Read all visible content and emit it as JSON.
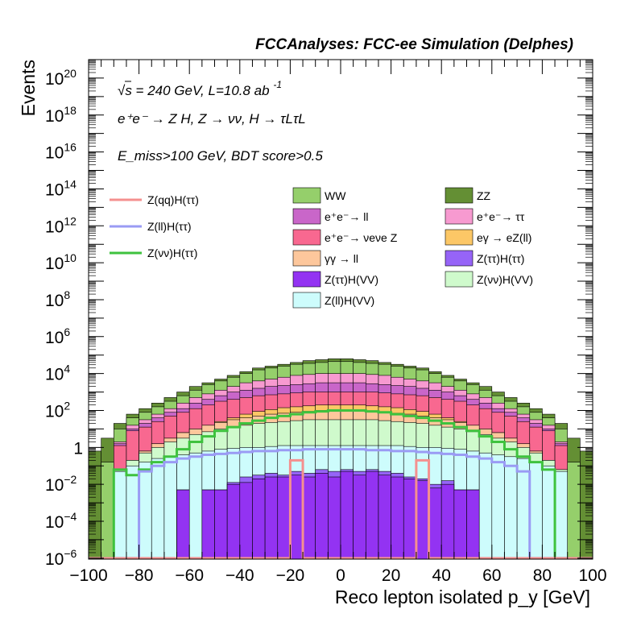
{
  "chart_data": {
    "type": "stacked-histogram",
    "title": "FCCAnalyses: FCC-ee Simulation (Delphes)",
    "xlabel": "Reco lepton isolated p_y [GeV]",
    "ylabel": "Events",
    "xlim": [
      -100,
      100
    ],
    "ylim_exp": [
      -6,
      21
    ],
    "log_y": true,
    "x_ticks": [
      -100,
      -80,
      -60,
      -40,
      -20,
      0,
      20,
      40,
      60,
      80,
      100
    ],
    "x_tick_labels": [
      "−100",
      "−80",
      "−60",
      "−40",
      "−20",
      "0",
      "20",
      "40",
      "60",
      "80",
      "100"
    ],
    "y_ticks": [
      {
        "exp": -6,
        "base": "10",
        "sup": "−6"
      },
      {
        "exp": -4,
        "base": "10",
        "sup": "−4"
      },
      {
        "exp": -2,
        "base": "10",
        "sup": "−2"
      },
      {
        "exp": 0,
        "base": "1",
        "sup": ""
      },
      {
        "exp": 2,
        "base": "10",
        "sup": "2"
      },
      {
        "exp": 4,
        "base": "10",
        "sup": "4"
      },
      {
        "exp": 6,
        "base": "10",
        "sup": "6"
      },
      {
        "exp": 8,
        "base": "10",
        "sup": "8"
      },
      {
        "exp": 10,
        "base": "10",
        "sup": "10"
      },
      {
        "exp": 12,
        "base": "10",
        "sup": "12"
      },
      {
        "exp": 14,
        "base": "10",
        "sup": "14"
      },
      {
        "exp": 16,
        "base": "10",
        "sup": "16"
      },
      {
        "exp": 18,
        "base": "10",
        "sup": "18"
      },
      {
        "exp": 20,
        "base": "10",
        "sup": "20"
      }
    ],
    "annotations": {
      "line1": "√s = 240 GeV, L=10.8 ab",
      "line1_sup": "-1",
      "line2": "e⁺e⁻ → Z H, Z → νν, H → τLτL",
      "line3": "E_miss>100 GeV, BDT score>0.5"
    },
    "legend_signal": [
      {
        "label": "Z(qq)H(ττ)",
        "color": "#f4908f"
      },
      {
        "label": "Z(ll)H(ττ)",
        "color": "#9a9bf4"
      },
      {
        "label": "Z(νν)H(ττ)",
        "color": "#3ec23e"
      }
    ],
    "legend_background": [
      {
        "label": "WW",
        "color": "#95cf6b"
      },
      {
        "label": "ZZ",
        "color": "#648f34"
      },
      {
        "label": "e⁺e⁻→ ll",
        "color": "#c966c9"
      },
      {
        "label": "e⁺e⁻→ ττ",
        "color": "#f79ad0"
      },
      {
        "label": "e⁺e⁻→ νeνe Z",
        "color": "#f86890"
      },
      {
        "label": "eγ → eZ(ll)",
        "color": "#fcc766"
      },
      {
        "label": "γγ → ll",
        "color": "#fdc79c"
      },
      {
        "label": "Z(ττ)H(ττ)",
        "color": "#9664f7"
      },
      {
        "label": "Z(ττ)H(VV)",
        "color": "#9333f2"
      },
      {
        "label": "Z(νν)H(VV)",
        "color": "#cffacc"
      },
      {
        "label": "Z(ll)H(VV)",
        "color": "#cdfcfc"
      }
    ],
    "bin_centers": [
      -97.5,
      -92.5,
      -87.5,
      -82.5,
      -77.5,
      -72.5,
      -67.5,
      -62.5,
      -57.5,
      -52.5,
      -47.5,
      -42.5,
      -37.5,
      -32.5,
      -27.5,
      -22.5,
      -17.5,
      -12.5,
      -7.5,
      -2.5,
      2.5,
      7.5,
      12.5,
      17.5,
      22.5,
      27.5,
      32.5,
      37.5,
      42.5,
      47.5,
      52.5,
      57.5,
      62.5,
      67.5,
      72.5,
      77.5,
      82.5,
      87.5,
      92.5,
      97.5
    ],
    "stack_log10": [
      {
        "name": "ZZ",
        "color": "#648f34",
        "log_top": [
          -0.2,
          0.5,
          1.3,
          1.8,
          2.1,
          2.4,
          2.7,
          3.0,
          3.3,
          3.5,
          3.7,
          3.9,
          4.1,
          4.3,
          4.4,
          4.5,
          4.6,
          4.7,
          4.75,
          4.8,
          4.8,
          4.75,
          4.7,
          4.6,
          4.5,
          4.4,
          4.3,
          4.1,
          3.9,
          3.7,
          3.5,
          3.3,
          3.0,
          2.7,
          2.4,
          2.1,
          1.8,
          1.3,
          0.5,
          -0.2
        ]
      },
      {
        "name": "WW",
        "color": "#95cf6b",
        "log_top": [
          -6,
          -0.8,
          1.0,
          1.6,
          1.9,
          2.2,
          2.5,
          2.8,
          3.1,
          3.4,
          3.6,
          3.8,
          4.0,
          4.2,
          4.3,
          4.4,
          4.5,
          4.55,
          4.6,
          4.65,
          4.65,
          4.6,
          4.55,
          4.5,
          4.4,
          4.3,
          4.2,
          4.0,
          3.8,
          3.6,
          3.4,
          3.1,
          2.8,
          2.5,
          2.2,
          1.9,
          1.6,
          1.0,
          -0.8,
          -6
        ]
      },
      {
        "name": "e⁺e⁻→ ττ",
        "color": "#f79ad0",
        "log_top": [
          -6,
          -6,
          0.3,
          1.2,
          1.5,
          1.8,
          2.1,
          2.4,
          2.7,
          2.9,
          3.1,
          3.3,
          3.5,
          3.6,
          3.7,
          3.8,
          3.9,
          3.95,
          4.0,
          4.0,
          4.0,
          4.0,
          3.95,
          3.9,
          3.8,
          3.7,
          3.6,
          3.5,
          3.3,
          3.1,
          2.9,
          2.7,
          2.4,
          2.1,
          1.8,
          1.5,
          1.2,
          0.3,
          -6,
          -6
        ]
      },
      {
        "name": "e⁺e⁻→ ll",
        "color": "#c966c9",
        "log_top": [
          -6,
          -6,
          0.2,
          1.0,
          1.3,
          1.6,
          1.9,
          2.1,
          2.4,
          2.6,
          2.8,
          3.0,
          3.1,
          3.2,
          3.3,
          3.35,
          3.4,
          3.45,
          3.5,
          3.5,
          3.5,
          3.5,
          3.45,
          3.4,
          3.35,
          3.3,
          3.2,
          3.1,
          3.0,
          2.8,
          2.6,
          2.4,
          2.1,
          1.9,
          1.6,
          1.3,
          1.0,
          0.2,
          -6,
          -6
        ]
      },
      {
        "name": "e⁺e⁻→ νeνe Z",
        "color": "#f86890",
        "log_top": [
          -6,
          -6,
          0.1,
          0.9,
          1.1,
          1.4,
          1.7,
          1.9,
          2.1,
          2.3,
          2.5,
          2.6,
          2.7,
          2.8,
          2.85,
          2.9,
          2.95,
          3.0,
          3.0,
          3.0,
          3.0,
          3.0,
          3.0,
          2.95,
          2.9,
          2.85,
          2.8,
          2.7,
          2.6,
          2.5,
          2.3,
          2.1,
          1.9,
          1.7,
          1.4,
          1.1,
          0.9,
          0.1,
          -6,
          -6
        ]
      },
      {
        "name": "eγ → eZ(ll)",
        "color": "#fcc766",
        "log_top": [
          -6,
          -6,
          -1.2,
          -0.7,
          -0.2,
          0.2,
          0.5,
          0.8,
          1.0,
          1.2,
          1.4,
          1.6,
          1.8,
          1.95,
          2.05,
          2.15,
          2.2,
          2.25,
          2.3,
          2.3,
          2.3,
          2.3,
          2.25,
          2.2,
          2.15,
          2.05,
          1.95,
          1.8,
          1.6,
          1.4,
          1.2,
          1.0,
          0.8,
          0.5,
          0.2,
          -0.2,
          -0.7,
          -1.2,
          -6,
          -6
        ]
      },
      {
        "name": "γγ → ll",
        "color": "#fdc79c",
        "log_top": [
          -6,
          -6,
          -1.2,
          -0.7,
          -0.2,
          0.2,
          0.5,
          0.8,
          1.0,
          1.2,
          1.35,
          1.5,
          1.6,
          1.7,
          1.8,
          1.85,
          1.9,
          1.95,
          2.0,
          2.0,
          2.0,
          2.0,
          1.95,
          1.9,
          1.85,
          1.8,
          1.7,
          1.6,
          1.5,
          1.35,
          1.2,
          1.0,
          0.8,
          0.5,
          0.2,
          -0.2,
          -0.7,
          -1.2,
          -6,
          -6
        ]
      },
      {
        "name": "Z(νν)H(VV)",
        "color": "#cffacc",
        "log_top": [
          -6,
          -6,
          -1.2,
          -0.7,
          -0.3,
          0.0,
          0.3,
          0.5,
          0.7,
          0.85,
          1.0,
          1.1,
          1.2,
          1.3,
          1.35,
          1.4,
          1.45,
          1.5,
          1.5,
          1.5,
          1.5,
          1.5,
          1.5,
          1.45,
          1.4,
          1.35,
          1.3,
          1.2,
          1.1,
          1.0,
          0.85,
          0.7,
          0.5,
          0.3,
          0.0,
          -0.3,
          -0.7,
          -1.2,
          -6,
          -6
        ]
      },
      {
        "name": "Z(ll)H(VV)",
        "color": "#cdfcfc",
        "log_top": [
          -6,
          -6,
          -1.3,
          -1.0,
          -0.8,
          -0.6,
          -0.5,
          -0.4,
          -0.3,
          -0.2,
          -0.1,
          -0.05,
          0.0,
          0.0,
          0.05,
          0.1,
          0.1,
          0.1,
          0.1,
          0.1,
          0.1,
          0.1,
          0.1,
          0.1,
          0.1,
          0.05,
          0.0,
          0.0,
          -0.05,
          -0.1,
          -0.2,
          -0.3,
          -0.4,
          -0.5,
          -0.6,
          -0.8,
          -1.0,
          -1.3,
          -6,
          -6
        ]
      },
      {
        "name": "Z(ττ)H(ττ)",
        "color": "#9664f7",
        "log_top": [
          -6,
          -6,
          -6,
          -6,
          -6,
          -6,
          -6,
          -2.3,
          -6,
          -2.3,
          -2.3,
          -1.9,
          -1.6,
          -1.5,
          -1.4,
          -1.5,
          -1.3,
          -1.4,
          -1.2,
          -1.3,
          -1.2,
          -1.3,
          -1.2,
          -1.3,
          -1.4,
          -1.6,
          -1.7,
          -2.0,
          -1.8,
          -2.3,
          -2.3,
          -6,
          -6,
          -6,
          -6,
          -6,
          -6,
          -6,
          -6,
          -6
        ]
      },
      {
        "name": "Z(ττ)H(VV)",
        "color": "#9333f2",
        "log_top": [
          -6,
          -6,
          -6,
          -6,
          -6,
          -6,
          -6,
          -2.3,
          -6,
          -2.3,
          -2.3,
          -2.0,
          -1.9,
          -1.7,
          -1.6,
          -1.6,
          -1.5,
          -1.6,
          -1.4,
          -1.6,
          -1.3,
          -1.5,
          -1.3,
          -1.5,
          -1.6,
          -1.7,
          -1.8,
          -2.2,
          -2.0,
          -2.3,
          -2.3,
          -6,
          -6,
          -6,
          -6,
          -6,
          -6,
          -6,
          -6,
          -6
        ]
      }
    ],
    "signal_log10": [
      {
        "name": "Z(νν)H(ττ)",
        "color": "#3ec23e",
        "log_y": [
          -6,
          -6,
          -1.2,
          -1.5,
          -1.2,
          -0.8,
          -0.5,
          -0.1,
          0.3,
          0.6,
          0.9,
          1.1,
          1.3,
          1.45,
          1.6,
          1.7,
          1.8,
          1.9,
          1.95,
          2.0,
          2.0,
          2.0,
          1.95,
          1.9,
          1.8,
          1.7,
          1.6,
          1.45,
          1.3,
          1.1,
          0.9,
          0.6,
          0.3,
          -0.1,
          -0.5,
          -0.8,
          -1.2,
          -6,
          -6,
          -6
        ]
      },
      {
        "name": "Z(ll)H(ττ)",
        "color": "#9a9bf4",
        "log_y": [
          -6,
          -6,
          -6,
          -6,
          -1.3,
          -1.0,
          -0.8,
          -0.6,
          -0.5,
          -0.4,
          -0.35,
          -0.3,
          -0.25,
          -0.2,
          -0.2,
          -0.15,
          -0.15,
          -0.1,
          -0.1,
          -0.1,
          -0.1,
          -0.1,
          -0.15,
          -0.15,
          -0.2,
          -0.2,
          -0.25,
          -0.3,
          -0.35,
          -0.4,
          -0.5,
          -0.6,
          -0.8,
          -1.0,
          -1.3,
          -6,
          -6,
          -6,
          -6,
          -6
        ]
      },
      {
        "name": "Z(qq)H(ττ)",
        "color": "#f4908f",
        "log_y": [
          -6,
          -6,
          -6,
          -6,
          -6,
          -6,
          -6,
          -6,
          -6,
          -6,
          -6,
          -6,
          -6,
          -6,
          -6,
          -6,
          -0.7,
          -6,
          -6,
          -6,
          -6,
          -6,
          -6,
          -6,
          -6,
          -6,
          -0.7,
          -6,
          -6,
          -6,
          -6,
          -6,
          -6,
          -6,
          -6,
          -6,
          -6,
          -6,
          -6,
          -6
        ]
      }
    ]
  }
}
